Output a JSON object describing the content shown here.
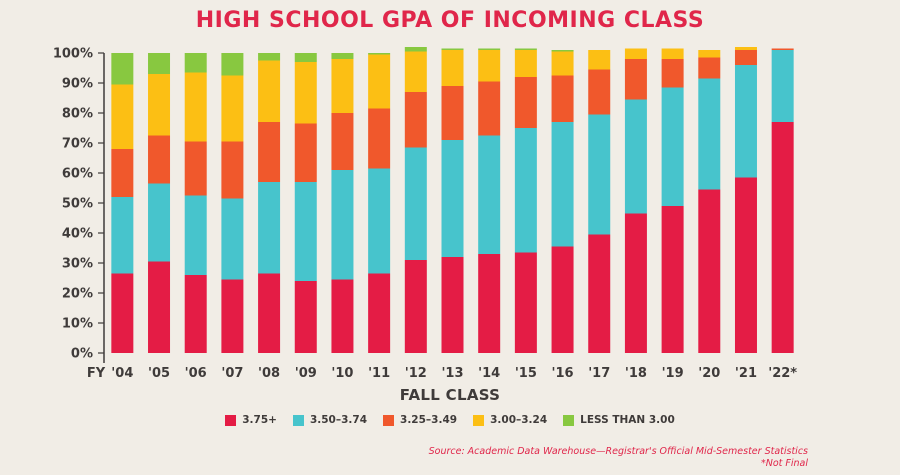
{
  "chart_data": {
    "type": "bar",
    "stacked": true,
    "title": "HIGH SCHOOL GPA OF INCOMING CLASS",
    "xlabel": "FALL CLASS",
    "x_axis_prefix": "FY",
    "ylabel": "",
    "ylim": [
      0,
      100
    ],
    "y_ticks": [
      "0%",
      "10%",
      "20%",
      "30%",
      "40%",
      "50%",
      "60%",
      "70%",
      "80%",
      "90%",
      "100%"
    ],
    "categories": [
      "'04",
      "'05",
      "'06",
      "'07",
      "'08",
      "'09",
      "'10",
      "'11",
      "'12",
      "'13",
      "'14",
      "'15",
      "'16",
      "'17",
      "'18",
      "'19",
      "'20",
      "'21",
      "'22*"
    ],
    "series": [
      {
        "name": "3.75+",
        "color": "#e41c45",
        "values": [
          26.5,
          30.5,
          26,
          24.5,
          26.5,
          24,
          24.5,
          26.5,
          31,
          32,
          33,
          33.5,
          35.5,
          39.5,
          46.5,
          49,
          54.5,
          58.5,
          77
        ]
      },
      {
        "name": "3.50–3.74",
        "color": "#47c4cc",
        "values": [
          25.5,
          26,
          26.5,
          27,
          30.5,
          33,
          36.5,
          35,
          37.5,
          39,
          39.5,
          41.5,
          41.5,
          40,
          38,
          39.5,
          37,
          37.5,
          24
        ]
      },
      {
        "name": "3.25–3.49",
        "color": "#f0582c",
        "values": [
          16,
          16,
          18,
          19,
          20,
          19.5,
          19,
          20,
          18.5,
          18,
          18,
          17,
          15.5,
          15,
          13.5,
          9.5,
          7,
          5,
          0.5
        ]
      },
      {
        "name": "3.00–3.24",
        "color": "#fcbf14",
        "values": [
          21.5,
          20.5,
          23,
          22,
          20.5,
          20.5,
          18,
          18,
          13.5,
          12,
          10.5,
          9,
          8,
          6.5,
          3.5,
          3.5,
          2.5,
          1,
          0
        ]
      },
      {
        "name": "LESS THAN 3.00",
        "color": "#88c840",
        "values": [
          10.5,
          7,
          6.5,
          7.5,
          2.5,
          3,
          2,
          0.5,
          1.5,
          0.5,
          0.5,
          0.5,
          0.5,
          0,
          0,
          0,
          0,
          0,
          0
        ]
      }
    ],
    "grid": false,
    "legend_position": "bottom",
    "source": "Source: Academic Data Warehouse—Registrar's Official Mid-Semester Statistics",
    "footnote": "*Not Final"
  },
  "colors": {
    "title": "#e0264a",
    "axis": "#3f3b3a",
    "background": "#f1ede6"
  }
}
